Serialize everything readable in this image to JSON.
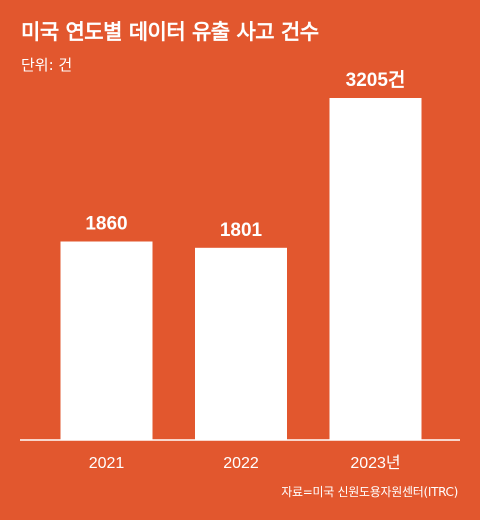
{
  "chart_data": {
    "type": "bar",
    "title": "미국 연도별 데이터 유출 사고 건수",
    "unit_label": "단위: 건",
    "categories": [
      "2021",
      "2022",
      "2023년"
    ],
    "values": [
      1860,
      1801,
      3205
    ],
    "value_labels": [
      "1860",
      "1801",
      "3205건"
    ],
    "source": "자료=미국 신원도용자원센터(ITRC)",
    "ylim": [
      0,
      3500
    ],
    "grid": false,
    "legend": "none"
  },
  "colors": {
    "background": "#E2572E",
    "bar": "#FFFFFF",
    "text": "#FFFFFF"
  }
}
